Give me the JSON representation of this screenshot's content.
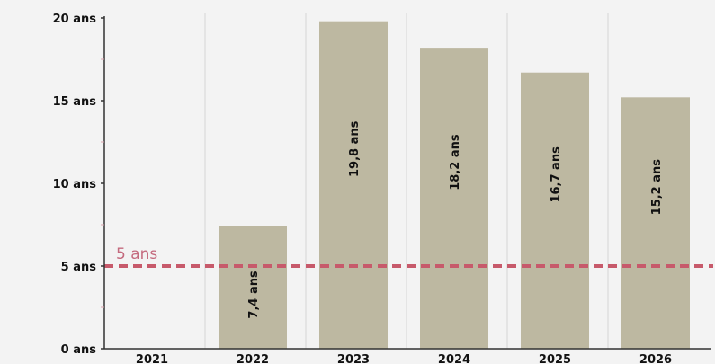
{
  "chart_data": {
    "type": "bar",
    "categories": [
      "2021",
      "2022",
      "2023",
      "2024",
      "2025",
      "2026"
    ],
    "values": [
      null,
      7.4,
      19.8,
      18.2,
      16.7,
      15.2
    ],
    "data_labels": [
      "",
      "7,4 ans",
      "19,8 ans",
      "18,2 ans",
      "16,7 ans",
      "15,2 ans"
    ],
    "y_ticks": [
      0,
      5,
      10,
      15,
      20
    ],
    "y_tick_labels": [
      "0 ans",
      "5 ans",
      "10 ans",
      "15 ans",
      "20 ans"
    ],
    "ylim": [
      0,
      20
    ],
    "reference_line": {
      "value": 5,
      "label": "5 ans",
      "style": "dashed"
    },
    "grid": "vertical",
    "legend": "none",
    "colors": {
      "bar": "#bdb8a1",
      "reference": "#c75a6b",
      "reference_label": "#c46a7e",
      "axis": "#333333",
      "grid": "#d6d6d6",
      "plot_bg": "#f1f1f1"
    }
  }
}
